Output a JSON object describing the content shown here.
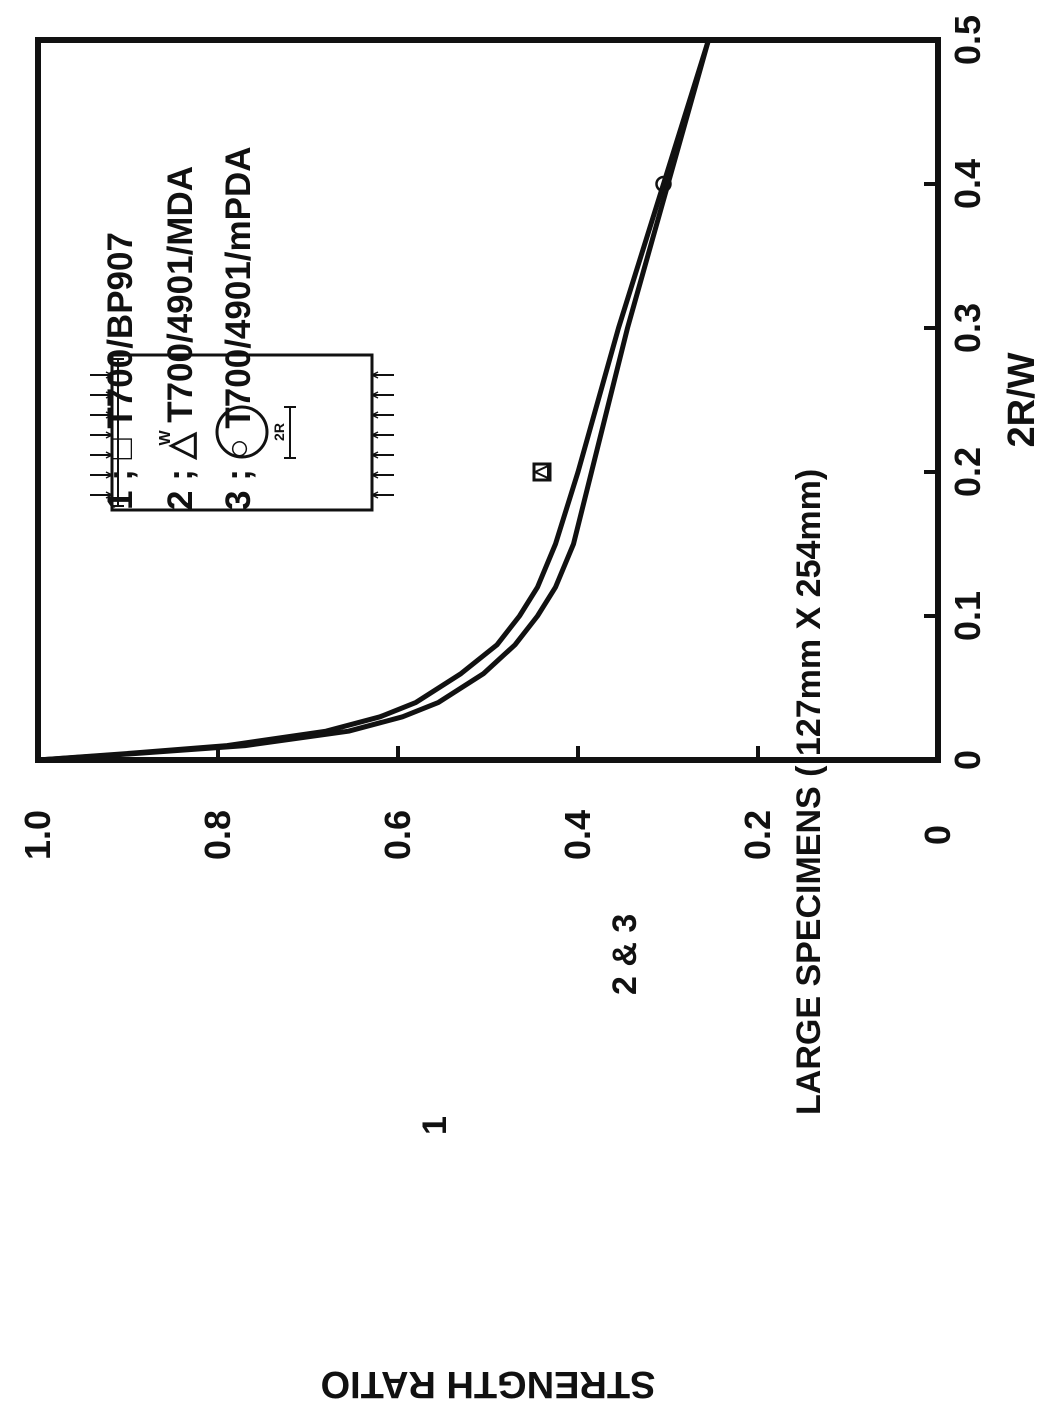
{
  "chart_data": {
    "type": "line",
    "title": "",
    "xlabel": "2R/W",
    "ylabel": "STRENGTH RATIO",
    "xlim": [
      0,
      0.5
    ],
    "ylim": [
      0,
      1.0
    ],
    "x_ticks": [
      "0",
      "0.1",
      "0.2",
      "0.3",
      "0.4",
      "0.5"
    ],
    "y_ticks": [
      "0",
      "0.2",
      "0.4",
      "0.6",
      "0.8",
      "1.0"
    ],
    "grid": false,
    "series": [
      {
        "label": "1",
        "x": [
          0,
          0.005,
          0.01,
          0.02,
          0.03,
          0.04,
          0.06,
          0.08,
          0.1,
          0.12,
          0.15,
          0.2,
          0.3,
          0.4,
          0.5
        ],
        "y": [
          1.0,
          0.89,
          0.79,
          0.68,
          0.62,
          0.58,
          0.53,
          0.49,
          0.465,
          0.445,
          0.425,
          0.4,
          0.355,
          0.305,
          0.255
        ]
      },
      {
        "label": "2 & 3",
        "x": [
          0,
          0.005,
          0.01,
          0.02,
          0.03,
          0.04,
          0.06,
          0.08,
          0.1,
          0.12,
          0.15,
          0.2,
          0.3,
          0.4,
          0.5
        ],
        "y": [
          1.0,
          0.88,
          0.77,
          0.655,
          0.595,
          0.555,
          0.505,
          0.47,
          0.445,
          0.425,
          0.405,
          0.385,
          0.345,
          0.3,
          0.255
        ]
      }
    ],
    "points": [
      {
        "marker": "square",
        "x": 0.2,
        "y": 0.44
      },
      {
        "marker": "triangle",
        "x": 0.2,
        "y": 0.44
      },
      {
        "marker": "circle",
        "x": 0.4,
        "y": 0.305
      }
    ],
    "legend": {
      "placement": "top-right",
      "entries": [
        "1 ; □ T700/BP907",
        "2 ; △ T700/4901/MDA",
        "3 ; ○ T700/4901/mPDA"
      ]
    },
    "annotations": {
      "specimens": "LARGE SPECIMENS ( 127mm X 254mm)",
      "curve1": "1",
      "curve23": "2 & 3"
    },
    "inset": {
      "width_label": "W",
      "hole_label": "2R"
    }
  }
}
